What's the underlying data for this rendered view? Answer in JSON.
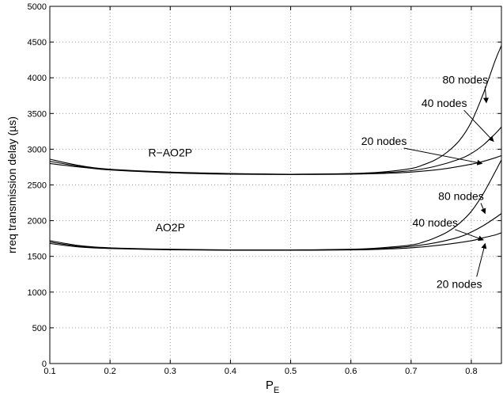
{
  "chart_data": {
    "type": "line",
    "xlabel": "P",
    "xlabel_sub": "E",
    "ylabel": "rreq transmission delay (µs)",
    "xlim": [
      0.1,
      0.85
    ],
    "ylim": [
      0,
      5000
    ],
    "xticks": [
      0.1,
      0.2,
      0.3,
      0.4,
      0.5,
      0.6,
      0.7,
      0.8
    ],
    "xtick_labels": [
      "0.1",
      "0.2",
      "0.3",
      "0.4",
      "0.5",
      "0.6",
      "0.7",
      "0.8"
    ],
    "yticks": [
      0,
      500,
      1000,
      1500,
      2000,
      2500,
      3000,
      3500,
      4000,
      4500,
      5000
    ],
    "ytick_labels": [
      "0",
      "500",
      "1000",
      "1500",
      "2000",
      "2500",
      "3000",
      "3500",
      "4000",
      "4500",
      "5000"
    ],
    "grid": true,
    "series": [
      {
        "group": "R-AO2P",
        "nodes": "80 nodes",
        "x": [
          0.1,
          0.15,
          0.2,
          0.3,
          0.4,
          0.5,
          0.6,
          0.65,
          0.7,
          0.72,
          0.74,
          0.76,
          0.78,
          0.8,
          0.82,
          0.84,
          0.85
        ],
        "y": [
          2860,
          2770,
          2720,
          2680,
          2660,
          2650,
          2660,
          2680,
          2730,
          2780,
          2850,
          2960,
          3120,
          3380,
          3780,
          4250,
          4450
        ]
      },
      {
        "group": "R-AO2P",
        "nodes": "40 nodes",
        "x": [
          0.1,
          0.15,
          0.2,
          0.3,
          0.4,
          0.5,
          0.6,
          0.65,
          0.7,
          0.74,
          0.78,
          0.8,
          0.82,
          0.84,
          0.85
        ],
        "y": [
          2830,
          2760,
          2715,
          2675,
          2655,
          2650,
          2655,
          2670,
          2700,
          2760,
          2860,
          2940,
          3060,
          3220,
          3310
        ]
      },
      {
        "group": "R-AO2P",
        "nodes": "20 nodes",
        "x": [
          0.1,
          0.15,
          0.2,
          0.3,
          0.4,
          0.5,
          0.6,
          0.65,
          0.7,
          0.75,
          0.8,
          0.82,
          0.84,
          0.85
        ],
        "y": [
          2800,
          2750,
          2710,
          2670,
          2650,
          2645,
          2650,
          2660,
          2680,
          2720,
          2790,
          2830,
          2880,
          2910
        ]
      },
      {
        "group": "AO2P",
        "nodes": "80 nodes",
        "x": [
          0.1,
          0.15,
          0.2,
          0.3,
          0.4,
          0.5,
          0.6,
          0.65,
          0.7,
          0.72,
          0.74,
          0.76,
          0.78,
          0.8,
          0.82,
          0.84,
          0.85
        ],
        "y": [
          1720,
          1650,
          1620,
          1600,
          1590,
          1590,
          1600,
          1620,
          1660,
          1700,
          1760,
          1840,
          1960,
          2130,
          2380,
          2690,
          2850
        ]
      },
      {
        "group": "AO2P",
        "nodes": "40 nodes",
        "x": [
          0.1,
          0.15,
          0.2,
          0.3,
          0.4,
          0.5,
          0.6,
          0.65,
          0.7,
          0.74,
          0.78,
          0.8,
          0.82,
          0.84,
          0.85
        ],
        "y": [
          1700,
          1640,
          1615,
          1595,
          1588,
          1588,
          1595,
          1610,
          1640,
          1690,
          1770,
          1840,
          1930,
          2040,
          2100
        ]
      },
      {
        "group": "AO2P",
        "nodes": "20 nodes",
        "x": [
          0.1,
          0.15,
          0.2,
          0.3,
          0.4,
          0.5,
          0.6,
          0.65,
          0.7,
          0.75,
          0.8,
          0.82,
          0.84,
          0.85
        ],
        "y": [
          1680,
          1630,
          1610,
          1592,
          1585,
          1585,
          1590,
          1600,
          1620,
          1660,
          1720,
          1760,
          1800,
          1830
        ]
      }
    ],
    "annotations": [
      {
        "id": "r-ao2p-label",
        "text": "R−AO2P",
        "x": 0.3,
        "y": 2900,
        "anchor": "middle"
      },
      {
        "id": "ao2p-label",
        "text": "AO2P",
        "x": 0.3,
        "y": 1850,
        "anchor": "middle"
      },
      {
        "id": "r-80",
        "text": "80 nodes",
        "x": 0.79,
        "y": 3920,
        "anchor": "middle",
        "arrow_to": [
          0.825,
          3650
        ]
      },
      {
        "id": "r-40",
        "text": "40 nodes",
        "x": 0.755,
        "y": 3590,
        "anchor": "middle",
        "arrow_to": [
          0.837,
          3110
        ]
      },
      {
        "id": "r-20",
        "text": "20 nodes",
        "x": 0.655,
        "y": 3060,
        "anchor": "middle",
        "arrow_to": [
          0.818,
          2800
        ]
      },
      {
        "id": "a-80",
        "text": "80 nodes",
        "x": 0.783,
        "y": 2290,
        "anchor": "middle",
        "arrow_to": [
          0.823,
          2100
        ]
      },
      {
        "id": "a-40",
        "text": "40 nodes",
        "x": 0.74,
        "y": 1920,
        "anchor": "middle",
        "arrow_to": [
          0.82,
          1730
        ]
      },
      {
        "id": "a-20",
        "text": "20 nodes",
        "x": 0.78,
        "y": 1060,
        "anchor": "middle",
        "arrow_to": [
          0.823,
          1680
        ]
      }
    ]
  }
}
